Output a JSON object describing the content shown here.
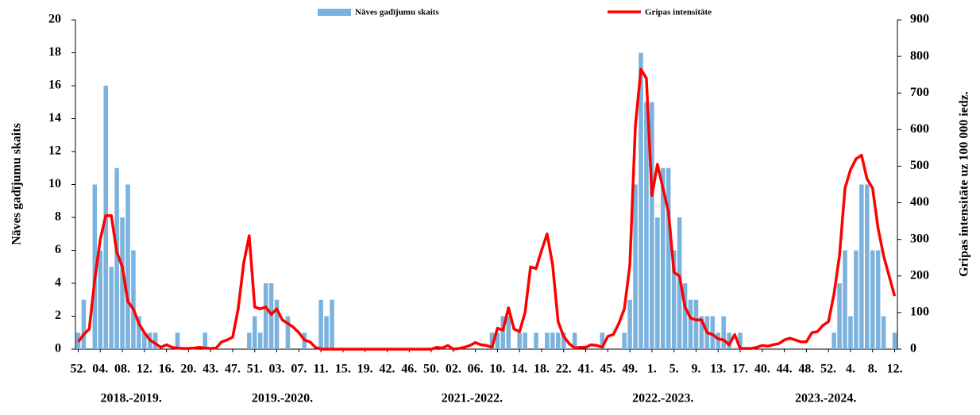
{
  "chart_data": {
    "type": "bar-line",
    "legend_position": "top",
    "y_label": "Nāves gadījumu skaits",
    "y2_label": "Gripas intensitāte uz 100 000 iedz.",
    "season_labels": [
      "2018.-2019.",
      "2019.-2020.",
      "2021.-2022.",
      "2022.-2023.",
      "2023.-2024."
    ],
    "categories": [
      "52.",
      null,
      null,
      null,
      "04.",
      null,
      null,
      null,
      "08.",
      null,
      null,
      null,
      "12.",
      null,
      null,
      null,
      "16.",
      null,
      null,
      null,
      "20.",
      null,
      null,
      null,
      "43.",
      null,
      null,
      null,
      "47.",
      null,
      null,
      null,
      "51.",
      null,
      null,
      null,
      "03.",
      null,
      null,
      null,
      "07.",
      null,
      null,
      null,
      "11.",
      null,
      null,
      null,
      "15.",
      null,
      null,
      null,
      "19.",
      null,
      null,
      null,
      "42.",
      null,
      null,
      null,
      "46.",
      null,
      null,
      null,
      "50.",
      null,
      null,
      null,
      "02.",
      null,
      null,
      null,
      "06.",
      null,
      null,
      null,
      "10.",
      null,
      null,
      null,
      "14.",
      null,
      null,
      null,
      "18.",
      null,
      null,
      null,
      "22.",
      null,
      null,
      null,
      "41.",
      null,
      null,
      null,
      "45.",
      null,
      null,
      null,
      "49.",
      null,
      null,
      null,
      "1.",
      null,
      null,
      null,
      "5.",
      null,
      null,
      null,
      "9.",
      null,
      null,
      null,
      "13.",
      null,
      null,
      null,
      "17.",
      null,
      null,
      null,
      "40.",
      null,
      null,
      null,
      "44.",
      null,
      null,
      null,
      "48.",
      null,
      null,
      null,
      "52.",
      null,
      null,
      null,
      "4.",
      null,
      null,
      null,
      "8.",
      null,
      null,
      null,
      "12."
    ],
    "series": [
      {
        "name": "Nāves gadījumu skaits",
        "kind": "bar",
        "color": "#7cb3de",
        "values": [
          1,
          3,
          0,
          10,
          6,
          16,
          5,
          11,
          8,
          10,
          6,
          2,
          1,
          1,
          1,
          0,
          0,
          0,
          1,
          0,
          0,
          0,
          0,
          1,
          0,
          0,
          0,
          0,
          0,
          0,
          0,
          1,
          2,
          1,
          4,
          4,
          3,
          0,
          2,
          0,
          0,
          1,
          0,
          0,
          3,
          2,
          3,
          0,
          0,
          0,
          0,
          0,
          0,
          0,
          0,
          0,
          0,
          0,
          0,
          0,
          0,
          0,
          0,
          0,
          0,
          0,
          0,
          0,
          0,
          0,
          0,
          0,
          0,
          0,
          0,
          1,
          1,
          2,
          2,
          0,
          1,
          1,
          0,
          1,
          0,
          1,
          1,
          1,
          1,
          0,
          1,
          0,
          0,
          0,
          0,
          1,
          0,
          0,
          0,
          1,
          3,
          10,
          18,
          15,
          15,
          8,
          11,
          11,
          6,
          8,
          4,
          3,
          3,
          2,
          2,
          2,
          1,
          2,
          1,
          0,
          1,
          0,
          0,
          0,
          0,
          0,
          0,
          0,
          0,
          0,
          0,
          0,
          0,
          0,
          0,
          0,
          0,
          1,
          4,
          6,
          2,
          6,
          10,
          10,
          6,
          6,
          2,
          0,
          1
        ]
      },
      {
        "name": "Gripas intensitāte",
        "kind": "line",
        "axis": "y2",
        "color": "#ff0000",
        "values": [
          20,
          40,
          55,
          190,
          300,
          365,
          365,
          265,
          225,
          130,
          110,
          70,
          45,
          25,
          15,
          5,
          12,
          5,
          3,
          2,
          2,
          3,
          5,
          3,
          2,
          3,
          20,
          25,
          33,
          110,
          235,
          310,
          115,
          110,
          115,
          95,
          110,
          80,
          70,
          60,
          45,
          25,
          20,
          5,
          0,
          0,
          0,
          0,
          0,
          0,
          0,
          0,
          0,
          0,
          0,
          0,
          0,
          0,
          0,
          0,
          0,
          0,
          0,
          0,
          0,
          5,
          3,
          10,
          0,
          2,
          5,
          10,
          18,
          12,
          10,
          5,
          57,
          52,
          113,
          55,
          48,
          100,
          225,
          220,
          270,
          315,
          230,
          75,
          35,
          15,
          3,
          5,
          5,
          12,
          10,
          5,
          35,
          40,
          70,
          110,
          230,
          610,
          765,
          740,
          420,
          505,
          440,
          375,
          210,
          200,
          115,
          85,
          80,
          80,
          45,
          40,
          28,
          25,
          12,
          40,
          2,
          2,
          2,
          5,
          10,
          8,
          12,
          15,
          25,
          30,
          25,
          20,
          20,
          45,
          48,
          65,
          75,
          150,
          255,
          440,
          490,
          520,
          530,
          465,
          440,
          330,
          255,
          200,
          145
        ]
      }
    ],
    "ylim": [
      0,
      20
    ],
    "yticks": [
      0,
      2,
      4,
      6,
      8,
      10,
      12,
      14,
      16,
      18,
      20
    ],
    "y2lim": [
      0,
      900
    ],
    "y2ticks": [
      0,
      100,
      200,
      300,
      400,
      500,
      600,
      700,
      800,
      900
    ]
  }
}
